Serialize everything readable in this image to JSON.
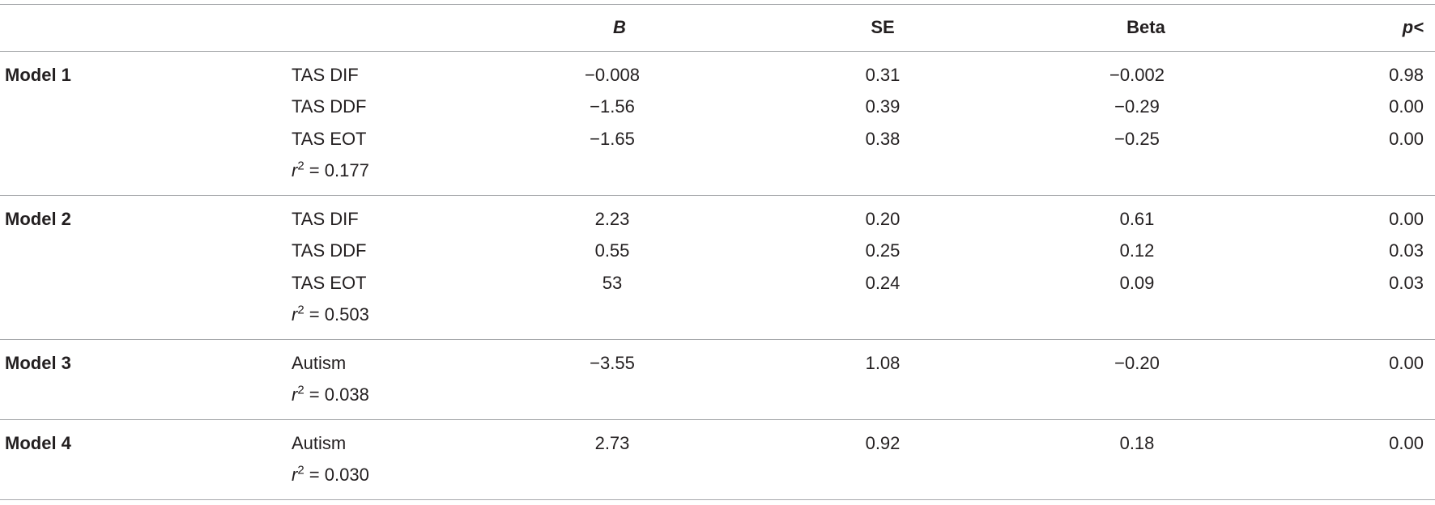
{
  "table": {
    "header": [
      "B",
      "SE",
      "Beta",
      "p<"
    ],
    "groups": [
      {
        "model": "Model 1",
        "rows": [
          {
            "predictor": "TAS DIF",
            "cells": [
              "−0.008",
              "0.31",
              "−0.002",
              "0.98"
            ]
          },
          {
            "predictor": "TAS DDF",
            "cells": [
              "−1.56",
              "0.39",
              "−0.29",
              "0.00"
            ]
          },
          {
            "predictor": "TAS EOT",
            "cells": [
              "−1.65",
              "0.38",
              "−0.25",
              "0.00"
            ]
          }
        ],
        "fit": {
          "symbol": "r",
          "exponent": "2",
          "relation": "=",
          "value": "0.177"
        }
      },
      {
        "model": "Model 2",
        "rows": [
          {
            "predictor": "TAS DIF",
            "cells": [
              "2.23",
              "0.20",
              "0.61",
              "0.00"
            ]
          },
          {
            "predictor": "TAS DDF",
            "cells": [
              "0.55",
              "0.25",
              "0.12",
              "0.03"
            ]
          },
          {
            "predictor": "TAS EOT",
            "cells": [
              "53",
              "0.24",
              "0.09",
              "0.03"
            ]
          }
        ],
        "fit": {
          "symbol": "r",
          "exponent": "2",
          "relation": "=",
          "value": "0.503"
        }
      },
      {
        "model": "Model 3",
        "rows": [
          {
            "predictor": "Autism",
            "cells": [
              "−3.55",
              "1.08",
              "−0.20",
              "0.00"
            ]
          }
        ],
        "fit": {
          "symbol": "r",
          "exponent": "2",
          "relation": "=",
          "value": "0.038"
        }
      },
      {
        "model": "Model 4",
        "rows": [
          {
            "predictor": "Autism",
            "cells": [
              "2.73",
              "0.92",
              "0.18",
              "0.00"
            ]
          }
        ],
        "fit": {
          "symbol": "r",
          "exponent": "2",
          "relation": "=",
          "value": "0.030"
        }
      }
    ]
  }
}
